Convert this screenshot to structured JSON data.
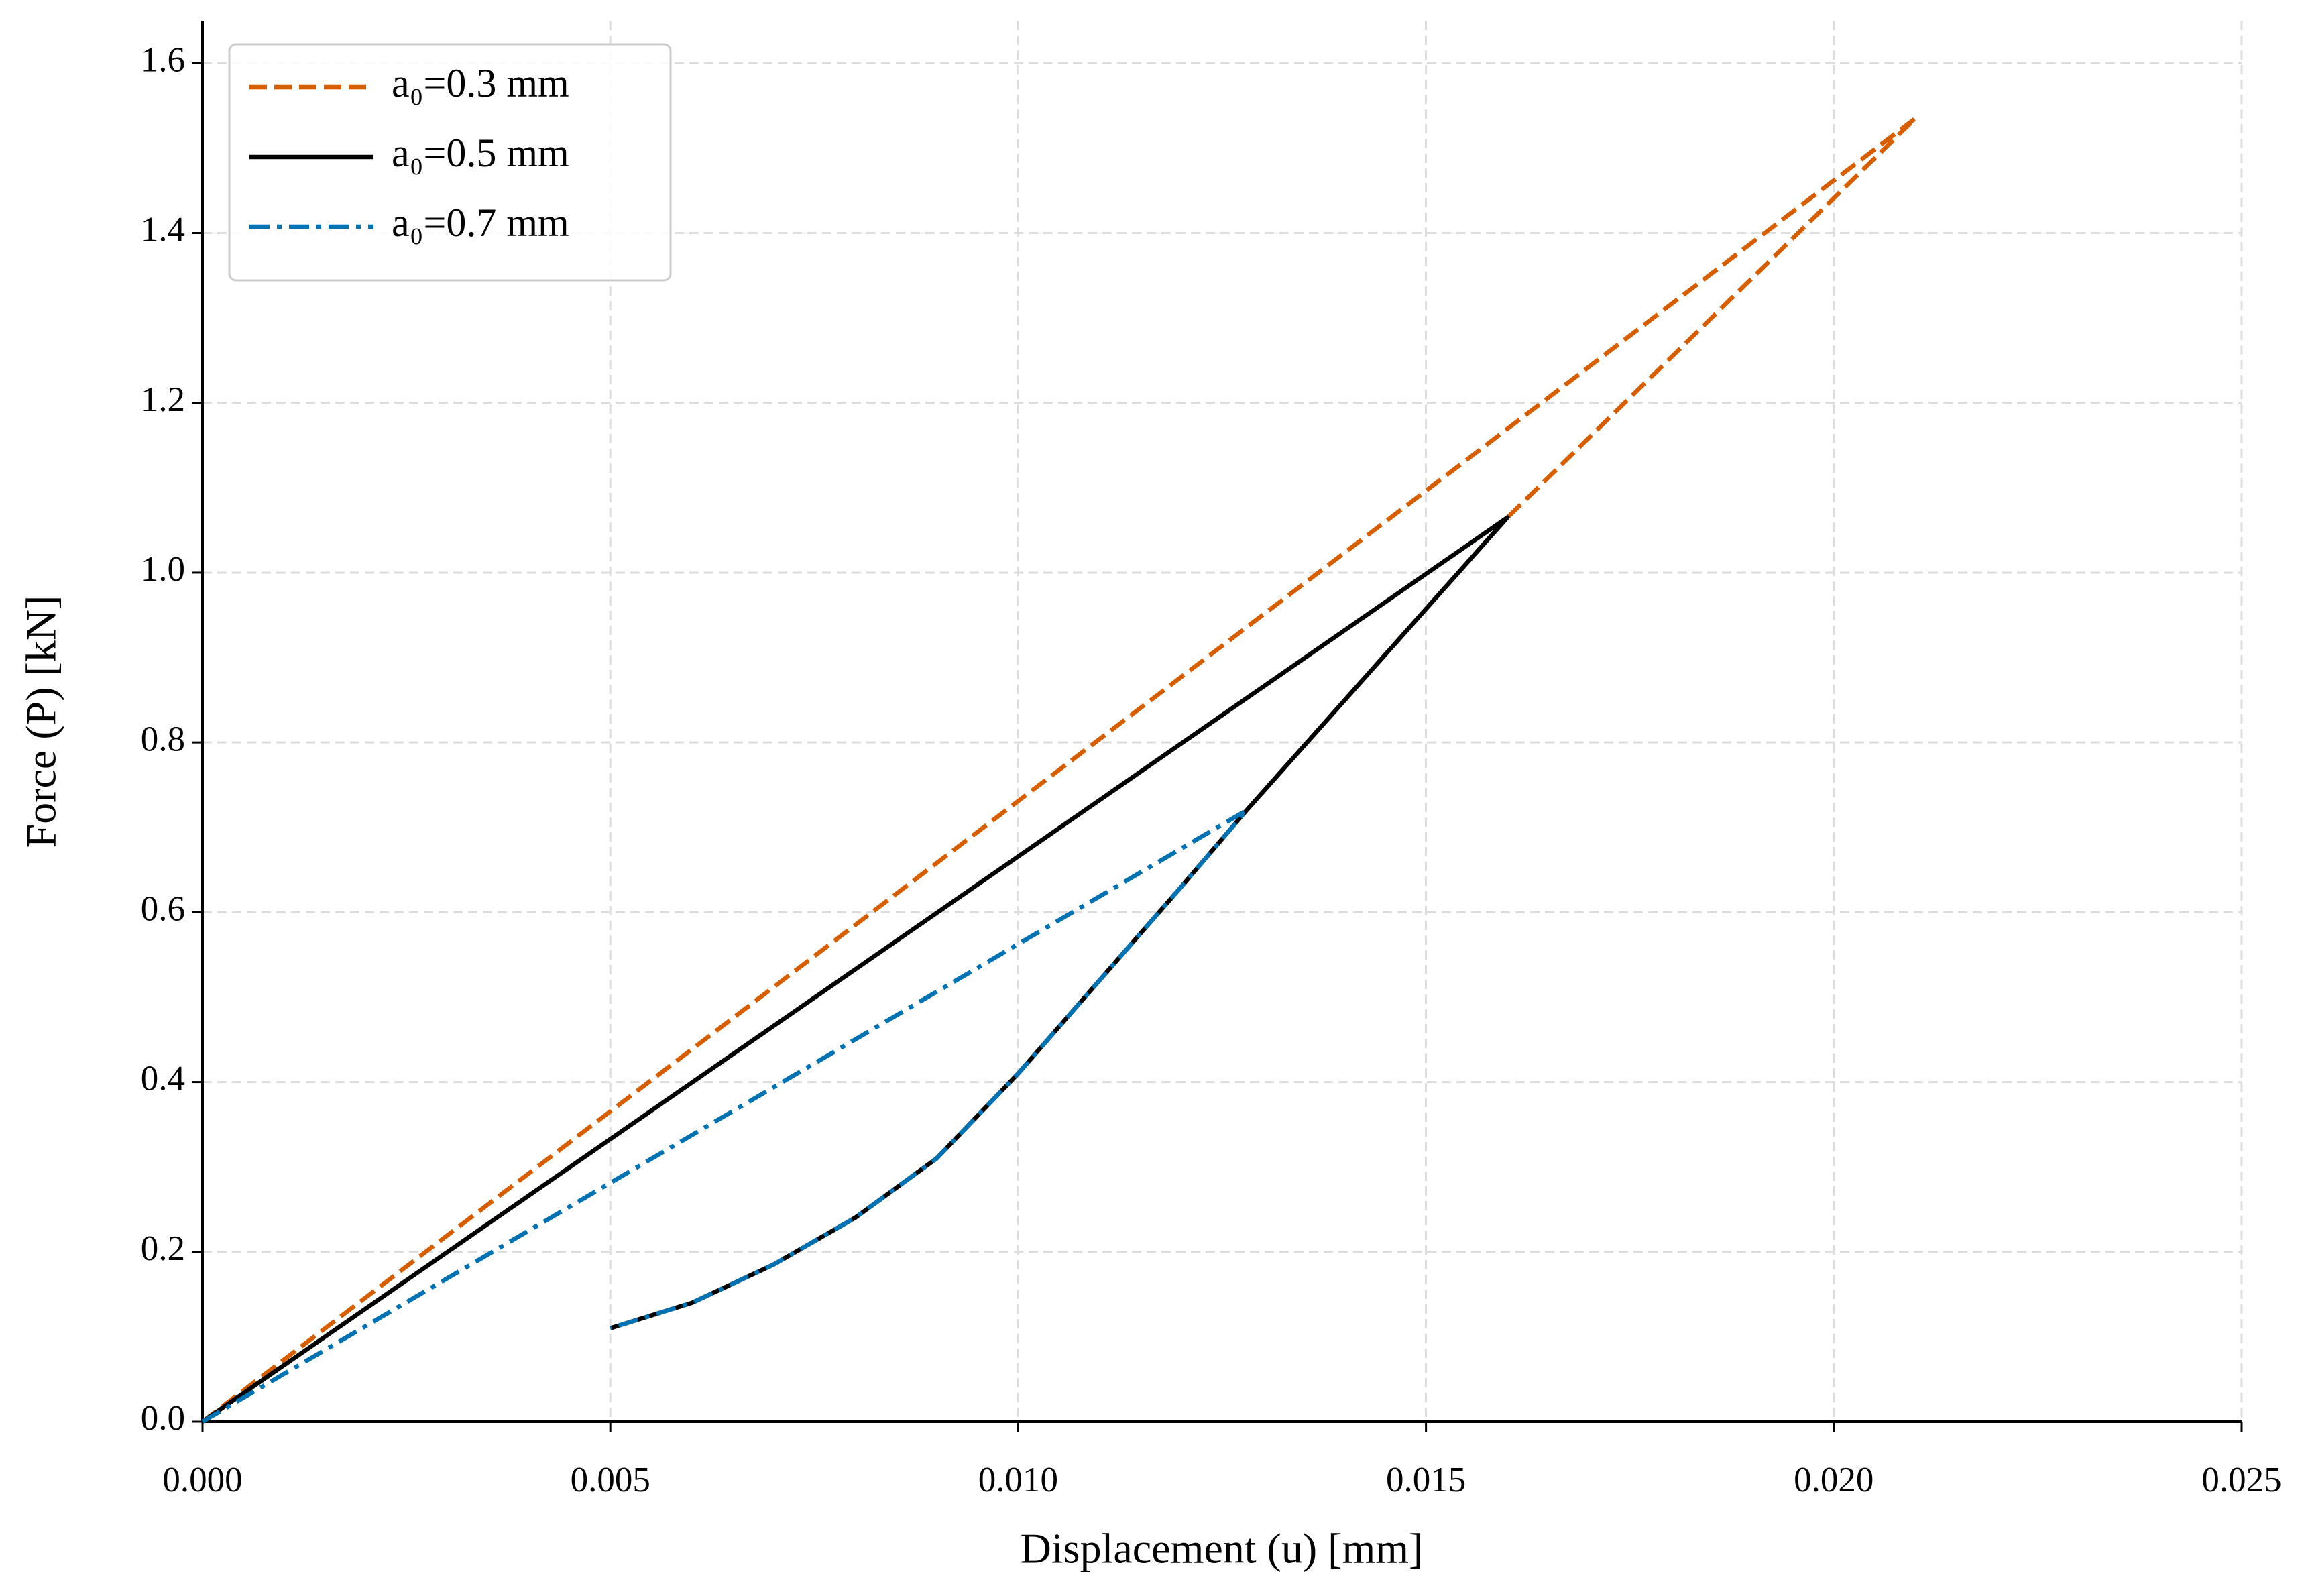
{
  "chart_data": {
    "type": "line",
    "xlabel": "Displacement (u) [mm]",
    "ylabel": "Force (P) [kN]",
    "xlim": [
      0,
      0.025
    ],
    "ylim": [
      0,
      1.65
    ],
    "xticks": [
      {
        "value": 0,
        "label": "0.000"
      },
      0.005,
      {
        "value": 0.01,
        "label": "0.010"
      },
      0.015,
      {
        "value": 0.02,
        "label": "0.020"
      },
      0.025
    ],
    "yticks": [
      {
        "value": 0,
        "label": "0.0"
      },
      0.2,
      0.4,
      0.6,
      0.8,
      {
        "value": 1,
        "label": "1.0"
      },
      1.2,
      1.4,
      1.6
    ],
    "grid": true,
    "legend": "upper left",
    "series": [
      {
        "name": "a₀=0.3 mm",
        "color": "#d55e00",
        "linestyle": "dashed",
        "x": [
          0,
          0.021,
          0.016,
          0.0128,
          0.012,
          0.011,
          0.01,
          0.009,
          0.008,
          0.007,
          0.006,
          0.005
        ],
        "values": [
          0,
          1.535,
          1.065,
          0.72,
          0.63,
          0.52,
          0.41,
          0.31,
          0.24,
          0.185,
          0.14,
          0.11
        ]
      },
      {
        "name": "a₀=0.5 mm",
        "color": "#000000",
        "linestyle": "solid",
        "x": [
          0,
          0.016,
          0.0128,
          0.012,
          0.011,
          0.01,
          0.009,
          0.008,
          0.007,
          0.006,
          0.005
        ],
        "values": [
          0,
          1.065,
          0.72,
          0.63,
          0.52,
          0.41,
          0.31,
          0.24,
          0.185,
          0.14,
          0.11
        ]
      },
      {
        "name": "a₀=0.7 mm",
        "color": "#0072b2",
        "linestyle": "dashdot",
        "x": [
          0,
          0.0128,
          0.012,
          0.011,
          0.01,
          0.009,
          0.008,
          0.007,
          0.006,
          0.005
        ],
        "values": [
          0,
          0.72,
          0.63,
          0.52,
          0.41,
          0.31,
          0.24,
          0.185,
          0.14,
          0.11
        ]
      }
    ]
  }
}
